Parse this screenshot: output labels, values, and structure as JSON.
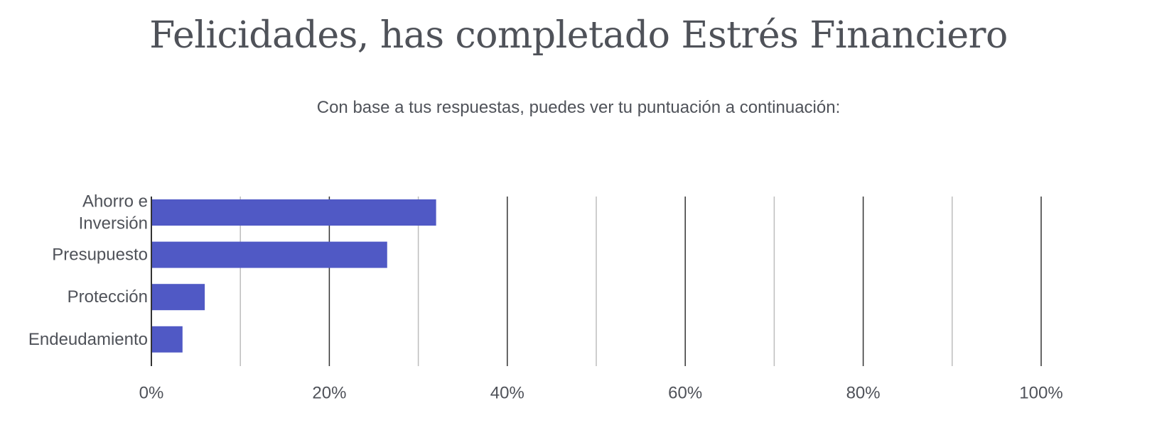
{
  "header": {
    "title": "Felicidades, has completado Estrés Financiero",
    "subtitle": "Con base a tus respuestas, puedes ver tu puntuación a continuación:"
  },
  "chart_data": {
    "type": "bar",
    "orientation": "horizontal",
    "categories": [
      [
        "Ahorro e",
        "Inversión"
      ],
      [
        "Presupuesto"
      ],
      [
        "Protección"
      ],
      [
        "Endeudamiento"
      ]
    ],
    "values": [
      32,
      26.5,
      6,
      3.5
    ],
    "xlim": [
      0,
      100
    ],
    "x_ticks": [
      0,
      20,
      40,
      60,
      80,
      100
    ],
    "x_tick_labels": [
      "0%",
      "20%",
      "40%",
      "60%",
      "80%",
      "100%"
    ],
    "minor_gridlines": [
      10,
      30,
      50,
      70,
      90
    ],
    "grid": true,
    "colors": {
      "bar": "#5059c5",
      "major_grid": "#333333",
      "minor_grid": "#bdbdbd",
      "text": "#4f5259"
    }
  }
}
